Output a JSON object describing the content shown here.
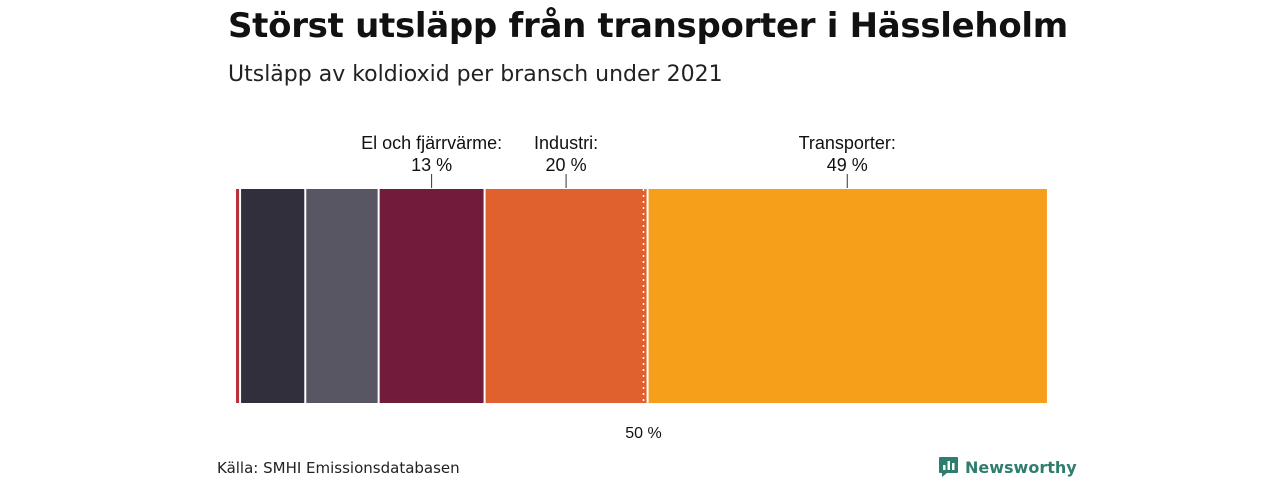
{
  "header": {
    "title": "Störst utsläpp från transporter i Hässleholm",
    "subtitle": "Utsläpp av koldioxid per bransch under 2021"
  },
  "footer": {
    "source": "Källa: SMHI Emissionsdatabasen",
    "brand": "Newsworthy",
    "brand_color": "#2f7d6e"
  },
  "chart_data": {
    "type": "bar",
    "orientation": "stacked-horizontal-100",
    "title": "Störst utsläpp från transporter i Hässleholm",
    "subtitle": "Utsläpp av koldioxid per bransch under 2021",
    "xlim": [
      0,
      100
    ],
    "unit": "%",
    "reference_line": {
      "value": 50,
      "label": "50 %",
      "style": "dotted"
    },
    "segments": [
      {
        "value": 0.5,
        "color": "#b8323e",
        "label": "",
        "value_label": ""
      },
      {
        "value": 8,
        "color": "#302f3b",
        "label": "",
        "value_label": ""
      },
      {
        "value": 9,
        "color": "#595663",
        "label": "",
        "value_label": ""
      },
      {
        "value": 13,
        "color": "#711c3b",
        "label": "El och fjärrvärme:",
        "value_label": "13 %"
      },
      {
        "value": 20,
        "color": "#e0602e",
        "label": "Industri:",
        "value_label": "20 %"
      },
      {
        "value": 49,
        "color": "#f59f1b",
        "label": "Transporter:",
        "value_label": "49 %"
      }
    ]
  }
}
